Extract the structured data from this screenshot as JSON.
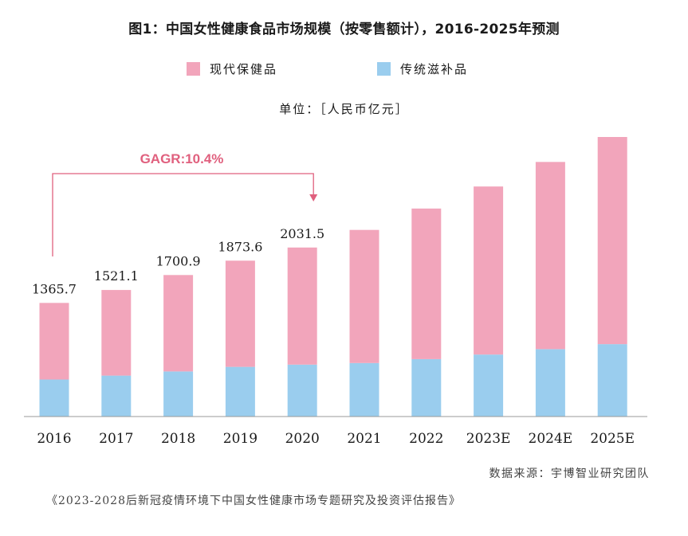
{
  "title": "图1：中国女性健康食品市场规模（按零售额计），2016-2025年预测",
  "unit": "单位：［人民币亿元］",
  "source": "数据来源：宇博智业研究团队",
  "report": "《2023-2028后新冠疫情环境下中国女性健康市场专题研究及投资评估报告》",
  "cagr_label": "GAGR:10.4%",
  "colors": {
    "pink": "#F2A5BB",
    "blue": "#9ACDEE",
    "accent": "#E0607E",
    "text": "#1a1a1a"
  },
  "chart_data": {
    "type": "bar",
    "stacked": true,
    "categories": [
      "2016",
      "2017",
      "2018",
      "2019",
      "2020",
      "2021",
      "2022",
      "2023E",
      "2024E",
      "2025E"
    ],
    "series": [
      {
        "name": "传统滋补品",
        "values": [
          445,
          492,
          542,
          597,
          624,
          643,
          690,
          745,
          810,
          870
        ]
      },
      {
        "name": "现代保健品",
        "values": [
          920.7,
          1029.1,
          1158.9,
          1276.6,
          1407.5,
          1600,
          1810,
          2020,
          2250,
          2490
        ]
      }
    ],
    "totals_labels": [
      "1365.7",
      "1521.1",
      "1700.9",
      "1873.6",
      "2031.5",
      null,
      null,
      null,
      null,
      null
    ],
    "ylim": [
      0,
      3600
    ],
    "legend": "top",
    "grid": false,
    "annotation": {
      "text": "GAGR:10.4%",
      "from": "2016",
      "to": "2020"
    }
  }
}
